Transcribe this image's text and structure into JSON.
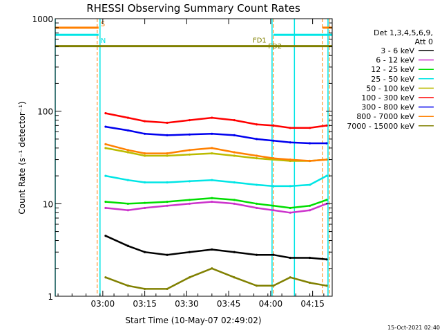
{
  "chart_data": {
    "type": "line",
    "title": "RHESSI Observing Summary Count Rates",
    "xlabel": "Start Time (10-May-07 02:49:02)",
    "ylabel": "Count Rate (s⁻¹ detector⁻¹)",
    "xlim_min": [
      -6,
      93
    ],
    "ylim": [
      1,
      1000
    ],
    "yscale": "log",
    "x_ticks": [
      {
        "min": 11,
        "label": "03:00"
      },
      {
        "min": 26,
        "label": "03:15"
      },
      {
        "min": 41,
        "label": "03:30"
      },
      {
        "min": 56,
        "label": "03:45"
      },
      {
        "min": 71,
        "label": "04:00"
      },
      {
        "min": 86,
        "label": "04:15"
      }
    ],
    "y_ticks": [
      {
        "value": 1,
        "label": "1"
      },
      {
        "value": 10,
        "label": "10"
      },
      {
        "value": 100,
        "label": "100"
      },
      {
        "value": 1000,
        "label": "1000"
      }
    ],
    "legend": {
      "placement": "right",
      "header": [
        "Det 1,3,4,5,6,9,",
        "Att 0"
      ]
    },
    "series": [
      {
        "name": "3 - 6 keV",
        "color": "#000000",
        "x": [
          12,
          20,
          26,
          34,
          42,
          50,
          58,
          66,
          72,
          78,
          85,
          91
        ],
        "y": [
          4.5,
          3.5,
          3.0,
          2.8,
          3.0,
          3.2,
          3.0,
          2.8,
          2.8,
          2.6,
          2.6,
          2.5
        ]
      },
      {
        "name": "6 - 12 keV",
        "color": "#cc33cc",
        "x": [
          12,
          20,
          26,
          34,
          42,
          50,
          58,
          66,
          72,
          78,
          85,
          91
        ],
        "y": [
          9.0,
          8.5,
          9.0,
          9.5,
          10.0,
          10.5,
          10.0,
          9.0,
          8.5,
          8.0,
          8.5,
          10.0
        ]
      },
      {
        "name": "12 - 25 keV",
        "color": "#00dd00",
        "x": [
          12,
          20,
          26,
          34,
          42,
          50,
          58,
          66,
          72,
          78,
          85,
          91
        ],
        "y": [
          10.5,
          10.0,
          10.2,
          10.5,
          11.0,
          11.5,
          11.0,
          10.0,
          9.5,
          9.0,
          9.5,
          11.0
        ]
      },
      {
        "name": "25 - 50 keV",
        "color": "#00e5e5",
        "x": [
          12,
          20,
          26,
          34,
          42,
          50,
          58,
          66,
          72,
          78,
          85,
          91
        ],
        "y": [
          20,
          18,
          17,
          17,
          17.5,
          18,
          17,
          16,
          15.5,
          15.5,
          16,
          20
        ]
      },
      {
        "name": "50 - 100 keV",
        "color": "#bbbb00",
        "x": [
          12,
          20,
          26,
          34,
          42,
          50,
          58,
          66,
          72,
          78,
          85,
          91
        ],
        "y": [
          40,
          36,
          33,
          33,
          34,
          35,
          33,
          31,
          30,
          29,
          29,
          30
        ]
      },
      {
        "name": "100 - 300 keV",
        "color": "#ff0000",
        "x": [
          12,
          20,
          26,
          34,
          42,
          50,
          58,
          66,
          72,
          78,
          85,
          91
        ],
        "y": [
          95,
          85,
          78,
          75,
          80,
          85,
          80,
          72,
          70,
          66,
          66,
          70
        ]
      },
      {
        "name": "300 - 800 keV",
        "color": "#0000ee",
        "x": [
          12,
          20,
          26,
          34,
          42,
          50,
          58,
          66,
          72,
          78,
          85,
          91
        ],
        "y": [
          68,
          62,
          57,
          55,
          56,
          57,
          55,
          50,
          48,
          46,
          45,
          45
        ]
      },
      {
        "name": "800 - 7000 keV",
        "color": "#ff8000",
        "x": [
          12,
          20,
          26,
          34,
          42,
          50,
          58,
          66,
          72,
          78,
          85,
          91
        ],
        "y": [
          44,
          38,
          35,
          35,
          38,
          40,
          36,
          33,
          31,
          30,
          29,
          30
        ]
      },
      {
        "name": "7000 - 15000 keV",
        "color": "#808000",
        "x": [
          12,
          20,
          26,
          34,
          42,
          50,
          58,
          66,
          72,
          78,
          85,
          91
        ],
        "y": [
          1.6,
          1.3,
          1.2,
          1.2,
          1.6,
          2.0,
          1.6,
          1.3,
          1.3,
          1.6,
          1.4,
          1.3
        ]
      }
    ],
    "flags": [
      {
        "label": "S",
        "color": "#ff8000",
        "min_start": -6,
        "min_end": 9.5,
        "level": 800
      },
      {
        "label": "N",
        "color": "#00e5e5",
        "min_start": -6,
        "min_end": 9.5,
        "level": 670
      },
      {
        "label": "",
        "color": "#ff8000",
        "min_start": 89.5,
        "min_end": 93,
        "level": 800
      },
      {
        "label": "",
        "color": "#00e5e5",
        "min_start": 72,
        "min_end": 93,
        "level": 670
      },
      {
        "label": "",
        "color": "#808000",
        "min_start": -6,
        "min_end": 93,
        "level": 505
      }
    ],
    "fd_labels": [
      {
        "label": "FD1",
        "color": "#808000",
        "min": 69.5,
        "level": 590
      },
      {
        "label": "FD2",
        "color": "#808000",
        "min": 75,
        "level": 510
      }
    ],
    "cyan_vlines_min": [
      -6,
      10,
      71.5,
      79.5,
      91.5
    ],
    "orange_dashed_vlines_min": [
      9,
      72,
      89.5,
      92
    ]
  },
  "timestamp": "15-Oct-2021 02:40"
}
